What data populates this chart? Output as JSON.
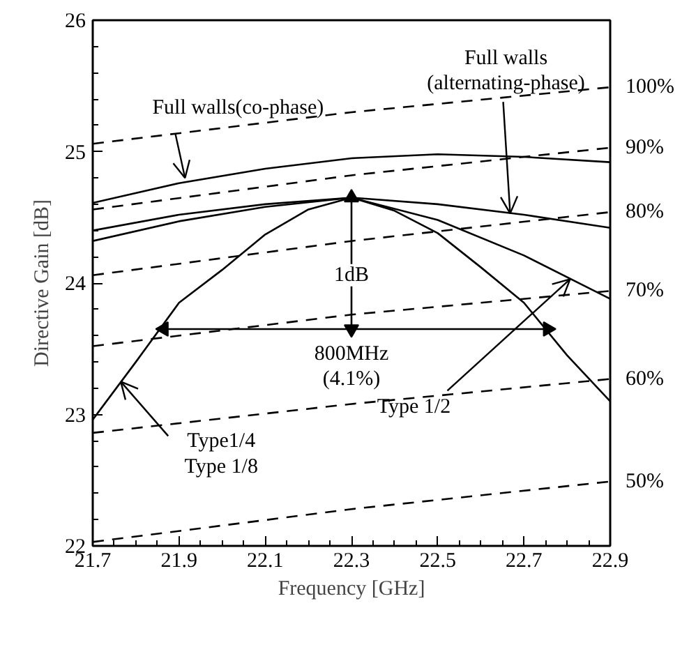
{
  "chart_data": {
    "type": "line",
    "xlabel": "Frequency [GHz]",
    "ylabel": "Directive Gain [dB]",
    "xlim": [
      21.7,
      22.9
    ],
    "ylim": [
      22,
      26
    ],
    "xticks": [
      21.7,
      21.9,
      22.1,
      22.3,
      22.5,
      22.7,
      22.9
    ],
    "yticks": [
      22,
      23,
      24,
      25,
      26
    ],
    "grid": false,
    "marker": "none",
    "line_style": "solid",
    "series": [
      {
        "color": "#000000",
        "x": [
          21.7,
          21.9,
          22.1,
          22.3,
          22.5,
          22.7,
          22.9
        ],
        "values": [
          24.61,
          24.76,
          24.87,
          24.95,
          24.98,
          24.96,
          24.92
        ]
      },
      {
        "color": "#000000",
        "x": [
          21.7,
          21.9,
          22.1,
          22.3,
          22.5,
          22.7,
          22.9
        ],
        "values": [
          24.4,
          24.52,
          24.6,
          24.65,
          24.6,
          24.52,
          24.42
        ]
      },
      {
        "color": "#000000",
        "x": [
          21.7,
          21.9,
          22.1,
          22.3,
          22.5,
          22.7,
          22.9
        ],
        "values": [
          24.32,
          24.47,
          24.58,
          24.65,
          24.48,
          24.21,
          23.88
        ]
      },
      {
        "color": "#000000",
        "x": [
          21.7,
          21.8,
          21.9,
          22.0,
          22.1,
          22.2,
          22.3,
          22.4,
          22.5,
          22.6,
          22.7,
          22.8,
          22.9
        ],
        "values": [
          22.96,
          23.4,
          23.85,
          24.1,
          24.37,
          24.56,
          24.65,
          24.55,
          24.38,
          24.12,
          23.85,
          23.45,
          23.1
        ]
      },
      {
        "name": "100%",
        "color": "#000000",
        "line_style": "dashed",
        "x": [
          21.7,
          22.3,
          22.9
        ],
        "values": [
          25.06,
          25.3,
          25.49
        ]
      },
      {
        "name": "90%",
        "color": "#000000",
        "line_style": "dashed",
        "x": [
          21.7,
          22.3,
          22.9
        ],
        "values": [
          24.56,
          24.82,
          25.03
        ]
      },
      {
        "name": "80%",
        "color": "#000000",
        "line_style": "dashed",
        "x": [
          21.7,
          22.3,
          22.9
        ],
        "values": [
          24.06,
          24.32,
          24.54
        ]
      },
      {
        "name": "70%",
        "color": "#000000",
        "line_style": "dashed",
        "x": [
          21.7,
          22.3,
          22.9
        ],
        "values": [
          23.52,
          23.76,
          23.94
        ]
      },
      {
        "name": "60%",
        "color": "#000000",
        "line_style": "dashed",
        "x": [
          21.7,
          22.3,
          22.9
        ],
        "values": [
          22.86,
          23.08,
          23.27
        ]
      },
      {
        "name": "50%",
        "color": "#000000",
        "line_style": "dashed",
        "x": [
          21.7,
          22.3,
          22.9
        ],
        "values": [
          22.03,
          22.28,
          22.49
        ]
      },
      {
        "color": "#000000",
        "marker": "triangle",
        "x": [
          22.3,
          22.3
        ],
        "values": [
          24.65,
          23.65
        ]
      },
      {
        "color": "#000000",
        "marker": "triangle",
        "x": [
          21.865,
          22.755
        ],
        "values": [
          23.65,
          23.65
        ]
      }
    ],
    "annotations": [
      {
        "text": "Full walls(co-phase)",
        "x": 21.914,
        "y": 24.8
      },
      {
        "text": "Full walls\n(alternating-phase)",
        "x": 22.668,
        "y": 24.53
      },
      {
        "text": "1dB",
        "x": 22.3,
        "y": 24.06
      },
      {
        "text": "800MHz\n(4.1%)",
        "x": 22.3,
        "y": 23.65
      },
      {
        "text": "Type 1/2",
        "x": 22.807,
        "y": 24.03
      },
      {
        "text": "Type1/4\nType 1/8",
        "x": 21.765,
        "y": 23.25
      }
    ]
  }
}
